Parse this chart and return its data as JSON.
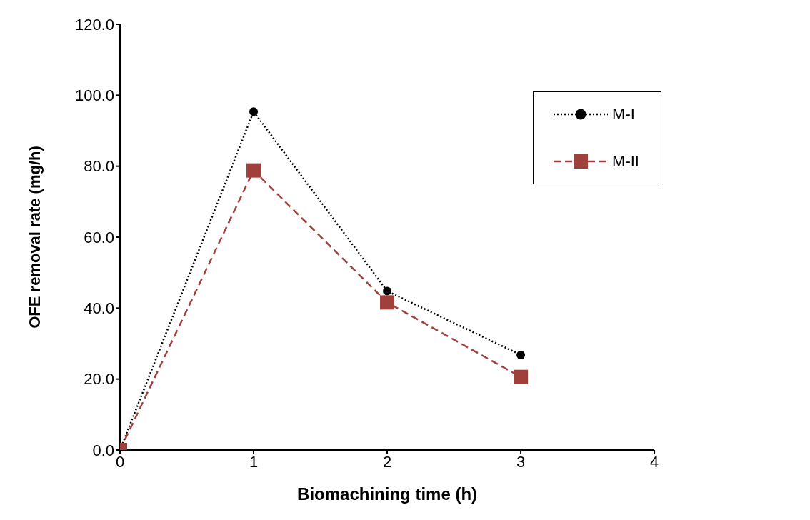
{
  "chart_data": {
    "type": "line",
    "xlabel": "Biomachining time (h)",
    "ylabel": "OFE removal rate (mg/h)",
    "x": [
      0,
      1,
      2,
      3
    ],
    "series": [
      {
        "name": "M-I",
        "color": "#000000",
        "values": [
          0,
          95.4,
          44.8,
          26.8
        ],
        "marker": "circle",
        "line_style": "dotted"
      },
      {
        "name": "M-II",
        "color": "#a0403a",
        "values": [
          0,
          78.8,
          41.6,
          20.6
        ],
        "marker": "square",
        "line_style": "dashed"
      }
    ],
    "xlim": [
      0,
      4
    ],
    "xticks": [
      0,
      1,
      2,
      3,
      4
    ],
    "ylim": [
      0,
      120
    ],
    "yticks": [
      {
        "value": 0,
        "label": "0.0"
      },
      {
        "value": 20,
        "label": "20.0"
      },
      {
        "value": 40,
        "label": "40.0"
      },
      {
        "value": 60,
        "label": "60.0"
      },
      {
        "value": 80,
        "label": "80.0"
      },
      {
        "value": 100,
        "label": "100.0"
      },
      {
        "value": 120,
        "label": "120.0"
      }
    ],
    "grid": false,
    "legend": "top right"
  }
}
